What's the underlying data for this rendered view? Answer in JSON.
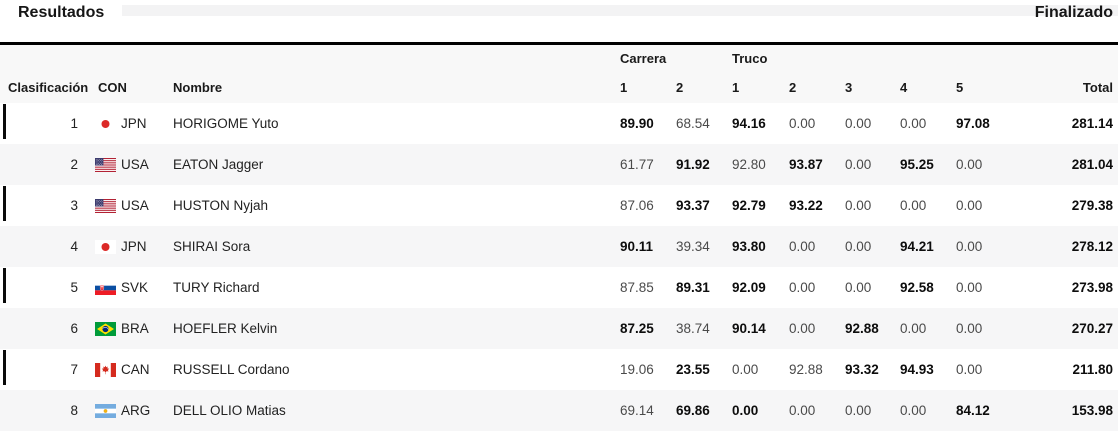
{
  "header": {
    "title": "Resultados",
    "status": "Finalizado"
  },
  "table": {
    "group_headers": {
      "carrera": "Carrera",
      "truco": "Truco"
    },
    "columns": {
      "clasificacion": "Clasificación",
      "con": "CON",
      "nombre": "Nombre",
      "carrera_runs": [
        "1",
        "2"
      ],
      "truco_runs": [
        "1",
        "2",
        "3",
        "4",
        "5"
      ],
      "total": "Total"
    },
    "rows": [
      {
        "rank": "1",
        "noc": "JPN",
        "name": "HORIGOME Yuto",
        "carrera": [
          "89.90",
          "68.54"
        ],
        "carrera_bold": [
          true,
          false
        ],
        "truco": [
          "94.16",
          "0.00",
          "0.00",
          "0.00",
          "97.08"
        ],
        "truco_bold": [
          true,
          false,
          false,
          false,
          true
        ],
        "total": "281.14"
      },
      {
        "rank": "2",
        "noc": "USA",
        "name": "EATON Jagger",
        "carrera": [
          "61.77",
          "91.92"
        ],
        "carrera_bold": [
          false,
          true
        ],
        "truco": [
          "92.80",
          "93.87",
          "0.00",
          "95.25",
          "0.00"
        ],
        "truco_bold": [
          false,
          true,
          false,
          true,
          false
        ],
        "total": "281.04"
      },
      {
        "rank": "3",
        "noc": "USA",
        "name": "HUSTON Nyjah",
        "carrera": [
          "87.06",
          "93.37"
        ],
        "carrera_bold": [
          false,
          true
        ],
        "truco": [
          "92.79",
          "93.22",
          "0.00",
          "0.00",
          "0.00"
        ],
        "truco_bold": [
          true,
          true,
          false,
          false,
          false
        ],
        "total": "279.38"
      },
      {
        "rank": "4",
        "noc": "JPN",
        "name": "SHIRAI Sora",
        "carrera": [
          "90.11",
          "39.34"
        ],
        "carrera_bold": [
          true,
          false
        ],
        "truco": [
          "93.80",
          "0.00",
          "0.00",
          "94.21",
          "0.00"
        ],
        "truco_bold": [
          true,
          false,
          false,
          true,
          false
        ],
        "total": "278.12"
      },
      {
        "rank": "5",
        "noc": "SVK",
        "name": "TURY Richard",
        "carrera": [
          "87.85",
          "89.31"
        ],
        "carrera_bold": [
          false,
          true
        ],
        "truco": [
          "92.09",
          "0.00",
          "0.00",
          "92.58",
          "0.00"
        ],
        "truco_bold": [
          true,
          false,
          false,
          true,
          false
        ],
        "total": "273.98"
      },
      {
        "rank": "6",
        "noc": "BRA",
        "name": "HOEFLER Kelvin",
        "carrera": [
          "87.25",
          "38.74"
        ],
        "carrera_bold": [
          true,
          false
        ],
        "truco": [
          "90.14",
          "0.00",
          "92.88",
          "0.00",
          "0.00"
        ],
        "truco_bold": [
          true,
          false,
          true,
          false,
          false
        ],
        "total": "270.27"
      },
      {
        "rank": "7",
        "noc": "CAN",
        "name": "RUSSELL Cordano",
        "carrera": [
          "19.06",
          "23.55"
        ],
        "carrera_bold": [
          false,
          true
        ],
        "truco": [
          "0.00",
          "92.88",
          "93.32",
          "94.93",
          "0.00"
        ],
        "truco_bold": [
          false,
          false,
          true,
          true,
          false
        ],
        "total": "211.80"
      },
      {
        "rank": "8",
        "noc": "ARG",
        "name": "DELL OLIO Matias",
        "carrera": [
          "69.14",
          "69.86"
        ],
        "carrera_bold": [
          false,
          true
        ],
        "truco": [
          "0.00",
          "0.00",
          "0.00",
          "0.00",
          "84.12"
        ],
        "truco_bold": [
          true,
          false,
          false,
          false,
          true
        ],
        "total": "153.98"
      }
    ]
  }
}
